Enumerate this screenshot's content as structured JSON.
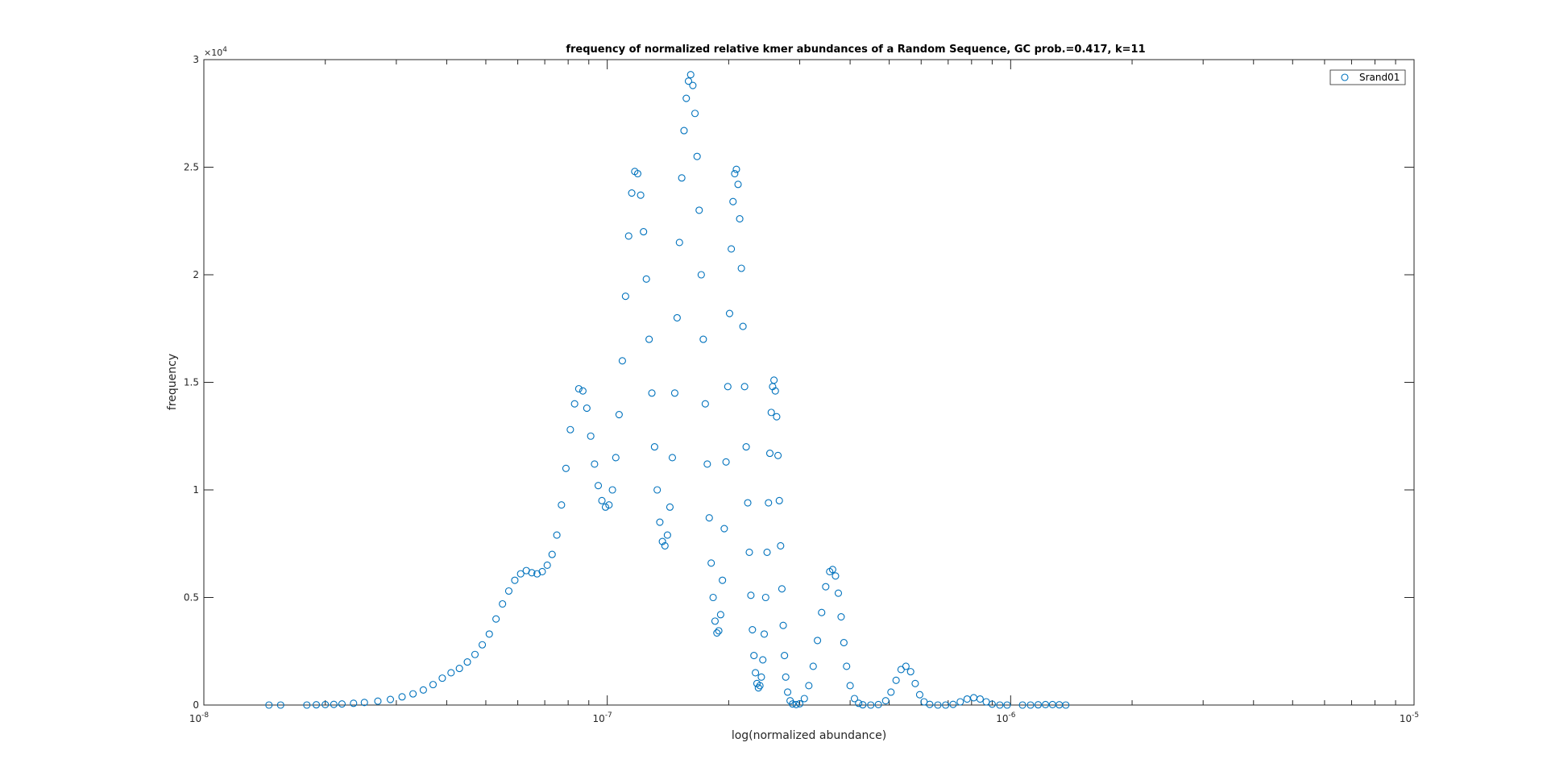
{
  "chart_data": {
    "type": "scatter",
    "title": "frequency of normalized relative kmer abundances of a Random Sequence, GC prob.=0.417, k=11",
    "xlabel": "log(normalized abundance)",
    "ylabel": "frequency",
    "xscale": "log",
    "xlim": [
      1e-08,
      1e-05
    ],
    "ylim": [
      0,
      30000
    ],
    "y_exponent_label": "×10^4",
    "xticks": [
      {
        "value": 1e-08,
        "base": "10",
        "exp": "-8"
      },
      {
        "value": 1e-07,
        "base": "10",
        "exp": "-7"
      },
      {
        "value": 1e-06,
        "base": "10",
        "exp": "-6"
      },
      {
        "value": 1e-05,
        "base": "10",
        "exp": "-5"
      }
    ],
    "yticks": [
      {
        "value": 0,
        "label": "0"
      },
      {
        "value": 5000,
        "label": "0.5"
      },
      {
        "value": 10000,
        "label": "1"
      },
      {
        "value": 15000,
        "label": "1.5"
      },
      {
        "value": 20000,
        "label": "2"
      },
      {
        "value": 25000,
        "label": "2.5"
      },
      {
        "value": 30000,
        "label": "3"
      }
    ],
    "legend": {
      "location": "top-right",
      "entries": [
        "Srand01"
      ]
    },
    "grid": false,
    "marker_color": "#0072BD",
    "series": [
      {
        "name": "Srand01",
        "marker": "open-circle",
        "points": [
          [
            1.45e-08,
            0
          ],
          [
            1.55e-08,
            0
          ],
          [
            1.8e-08,
            0
          ],
          [
            1.9e-08,
            10
          ],
          [
            2e-08,
            20
          ],
          [
            2.1e-08,
            30
          ],
          [
            2.2e-08,
            50
          ],
          [
            2.35e-08,
            80
          ],
          [
            2.5e-08,
            120
          ],
          [
            2.7e-08,
            180
          ],
          [
            2.9e-08,
            260
          ],
          [
            3.1e-08,
            380
          ],
          [
            3.3e-08,
            520
          ],
          [
            3.5e-08,
            700
          ],
          [
            3.7e-08,
            950
          ],
          [
            3.9e-08,
            1250
          ],
          [
            4.1e-08,
            1500
          ],
          [
            4.3e-08,
            1700
          ],
          [
            4.5e-08,
            2000
          ],
          [
            4.7e-08,
            2350
          ],
          [
            4.9e-08,
            2800
          ],
          [
            5.1e-08,
            3300
          ],
          [
            5.3e-08,
            4000
          ],
          [
            5.5e-08,
            4700
          ],
          [
            5.7e-08,
            5300
          ],
          [
            5.9e-08,
            5800
          ],
          [
            6.1e-08,
            6100
          ],
          [
            6.3e-08,
            6250
          ],
          [
            6.5e-08,
            6150
          ],
          [
            6.7e-08,
            6100
          ],
          [
            6.9e-08,
            6200
          ],
          [
            7.1e-08,
            6500
          ],
          [
            7.3e-08,
            7000
          ],
          [
            7.5e-08,
            7900
          ],
          [
            7.7e-08,
            9300
          ],
          [
            7.9e-08,
            11000
          ],
          [
            8.1e-08,
            12800
          ],
          [
            8.3e-08,
            14000
          ],
          [
            8.5e-08,
            14700
          ],
          [
            8.7e-08,
            14600
          ],
          [
            8.9e-08,
            13800
          ],
          [
            9.1e-08,
            12500
          ],
          [
            9.3e-08,
            11200
          ],
          [
            9.5e-08,
            10200
          ],
          [
            9.7e-08,
            9500
          ],
          [
            9.9e-08,
            9200
          ],
          [
            1.01e-07,
            9300
          ],
          [
            1.03e-07,
            10000
          ],
          [
            1.05e-07,
            11500
          ],
          [
            1.07e-07,
            13500
          ],
          [
            1.09e-07,
            16000
          ],
          [
            1.11e-07,
            19000
          ],
          [
            1.13e-07,
            21800
          ],
          [
            1.15e-07,
            23800
          ],
          [
            1.17e-07,
            24800
          ],
          [
            1.19e-07,
            24700
          ],
          [
            1.21e-07,
            23700
          ],
          [
            1.23e-07,
            22000
          ],
          [
            1.25e-07,
            19800
          ],
          [
            1.27e-07,
            17000
          ],
          [
            1.29e-07,
            14500
          ],
          [
            1.31e-07,
            12000
          ],
          [
            1.33e-07,
            10000
          ],
          [
            1.35e-07,
            8500
          ],
          [
            1.37e-07,
            7600
          ],
          [
            1.39e-07,
            7400
          ],
          [
            1.41e-07,
            7900
          ],
          [
            1.43e-07,
            9200
          ],
          [
            1.45e-07,
            11500
          ],
          [
            1.47e-07,
            14500
          ],
          [
            1.49e-07,
            18000
          ],
          [
            1.51e-07,
            21500
          ],
          [
            1.53e-07,
            24500
          ],
          [
            1.55e-07,
            26700
          ],
          [
            1.57e-07,
            28200
          ],
          [
            1.59e-07,
            29000
          ],
          [
            1.61e-07,
            29300
          ],
          [
            1.63e-07,
            28800
          ],
          [
            1.65e-07,
            27500
          ],
          [
            1.67e-07,
            25500
          ],
          [
            1.69e-07,
            23000
          ],
          [
            1.71e-07,
            20000
          ],
          [
            1.73e-07,
            17000
          ],
          [
            1.75e-07,
            14000
          ],
          [
            1.77e-07,
            11200
          ],
          [
            1.79e-07,
            8700
          ],
          [
            1.81e-07,
            6600
          ],
          [
            1.83e-07,
            5000
          ],
          [
            1.85e-07,
            3900
          ],
          [
            1.87e-07,
            3350
          ],
          [
            1.89e-07,
            3450
          ],
          [
            1.91e-07,
            4200
          ],
          [
            1.93e-07,
            5800
          ],
          [
            1.95e-07,
            8200
          ],
          [
            1.97e-07,
            11300
          ],
          [
            1.99e-07,
            14800
          ],
          [
            2.01e-07,
            18200
          ],
          [
            2.03e-07,
            21200
          ],
          [
            2.05e-07,
            23400
          ],
          [
            2.07e-07,
            24700
          ],
          [
            2.09e-07,
            24900
          ],
          [
            2.11e-07,
            24200
          ],
          [
            2.13e-07,
            22600
          ],
          [
            2.15e-07,
            20300
          ],
          [
            2.17e-07,
            17600
          ],
          [
            2.19e-07,
            14800
          ],
          [
            2.21e-07,
            12000
          ],
          [
            2.23e-07,
            9400
          ],
          [
            2.25e-07,
            7100
          ],
          [
            2.27e-07,
            5100
          ],
          [
            2.29e-07,
            3500
          ],
          [
            2.31e-07,
            2300
          ],
          [
            2.33e-07,
            1500
          ],
          [
            2.35e-07,
            1000
          ],
          [
            2.37e-07,
            800
          ],
          [
            2.39e-07,
            900
          ],
          [
            2.41e-07,
            1300
          ],
          [
            2.43e-07,
            2100
          ],
          [
            2.45e-07,
            3300
          ],
          [
            2.47e-07,
            5000
          ],
          [
            2.49e-07,
            7100
          ],
          [
            2.51e-07,
            9400
          ],
          [
            2.53e-07,
            11700
          ],
          [
            2.55e-07,
            13600
          ],
          [
            2.57e-07,
            14800
          ],
          [
            2.59e-07,
            15100
          ],
          [
            2.61e-07,
            14600
          ],
          [
            2.63e-07,
            13400
          ],
          [
            2.65e-07,
            11600
          ],
          [
            2.67e-07,
            9500
          ],
          [
            2.69e-07,
            7400
          ],
          [
            2.71e-07,
            5400
          ],
          [
            2.73e-07,
            3700
          ],
          [
            2.75e-07,
            2300
          ],
          [
            2.77e-07,
            1300
          ],
          [
            2.8e-07,
            600
          ],
          [
            2.84e-07,
            200
          ],
          [
            2.88e-07,
            50
          ],
          [
            2.94e-07,
            20
          ],
          [
            3e-07,
            60
          ],
          [
            3.08e-07,
            300
          ],
          [
            3.16e-07,
            900
          ],
          [
            3.24e-07,
            1800
          ],
          [
            3.32e-07,
            3000
          ],
          [
            3.4e-07,
            4300
          ],
          [
            3.48e-07,
            5500
          ],
          [
            3.56e-07,
            6200
          ],
          [
            3.62e-07,
            6300
          ],
          [
            3.68e-07,
            6000
          ],
          [
            3.74e-07,
            5200
          ],
          [
            3.8e-07,
            4100
          ],
          [
            3.86e-07,
            2900
          ],
          [
            3.92e-07,
            1800
          ],
          [
            4e-07,
            900
          ],
          [
            4.1e-07,
            300
          ],
          [
            4.2e-07,
            80
          ],
          [
            4.3e-07,
            10
          ],
          [
            4.5e-07,
            0
          ],
          [
            4.7e-07,
            20
          ],
          [
            4.9e-07,
            200
          ],
          [
            5.05e-07,
            600
          ],
          [
            5.2e-07,
            1150
          ],
          [
            5.35e-07,
            1650
          ],
          [
            5.5e-07,
            1800
          ],
          [
            5.65e-07,
            1550
          ],
          [
            5.8e-07,
            1000
          ],
          [
            5.95e-07,
            480
          ],
          [
            6.1e-07,
            150
          ],
          [
            6.3e-07,
            30
          ],
          [
            6.6e-07,
            0
          ],
          [
            6.9e-07,
            0
          ],
          [
            7.2e-07,
            30
          ],
          [
            7.5e-07,
            150
          ],
          [
            7.8e-07,
            280
          ],
          [
            8.1e-07,
            340
          ],
          [
            8.4e-07,
            280
          ],
          [
            8.7e-07,
            150
          ],
          [
            9e-07,
            40
          ],
          [
            9.4e-07,
            0
          ],
          [
            9.8e-07,
            0
          ],
          [
            1.07e-06,
            0
          ],
          [
            1.12e-06,
            0
          ],
          [
            1.17e-06,
            10
          ],
          [
            1.22e-06,
            20
          ],
          [
            1.27e-06,
            20
          ],
          [
            1.32e-06,
            10
          ],
          [
            1.37e-06,
            0
          ]
        ]
      }
    ]
  }
}
